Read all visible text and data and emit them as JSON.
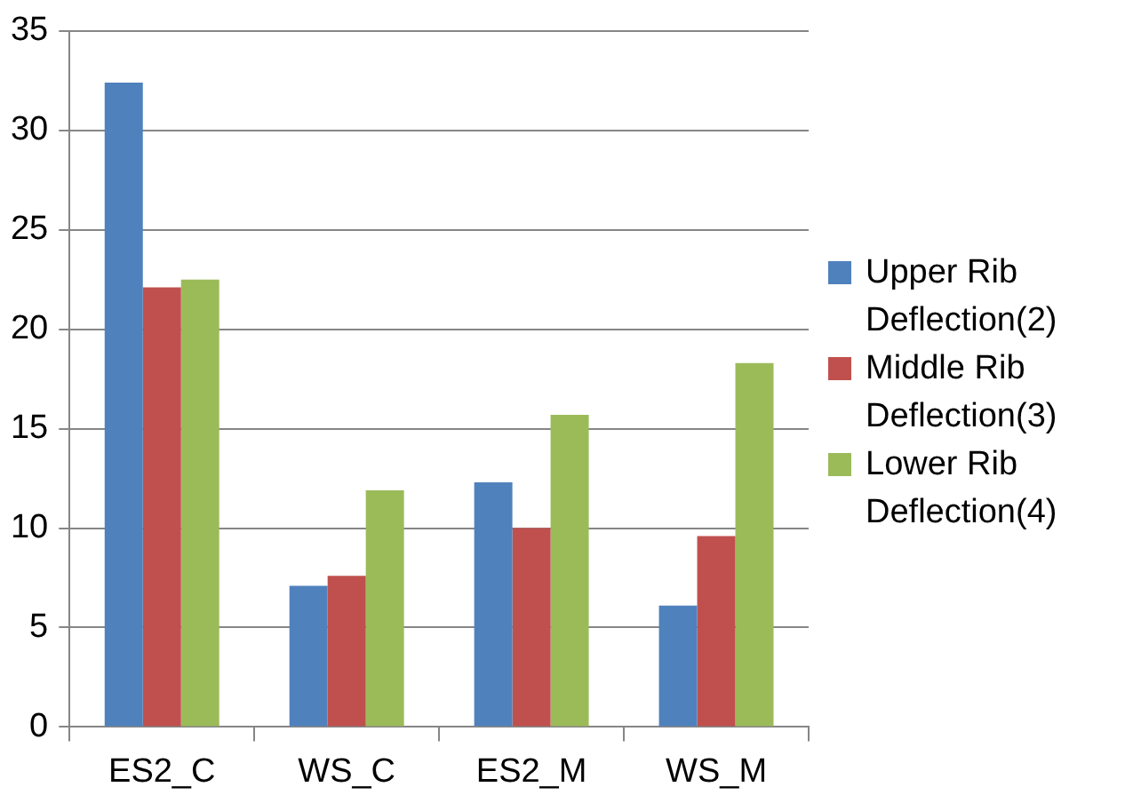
{
  "chart_data": {
    "type": "bar",
    "categories": [
      "ES2_C",
      "WS_C",
      "ES2_M",
      "WS_M"
    ],
    "series": [
      {
        "name": "Upper Rib Deflection(2)",
        "color": "#4f81bd",
        "values": [
          32.4,
          7.1,
          12.3,
          6.1
        ]
      },
      {
        "name": "Middle Rib Deflection(3)",
        "color": "#c0504d",
        "values": [
          22.1,
          7.6,
          10.0,
          9.6
        ]
      },
      {
        "name": "Lower Rib Deflection(4)",
        "color": "#9bbb59",
        "values": [
          22.5,
          11.9,
          15.7,
          18.3
        ]
      }
    ],
    "ylim": [
      0,
      35
    ],
    "yticks": [
      0,
      5,
      10,
      15,
      20,
      25,
      30,
      35
    ],
    "grid": "y",
    "legend": "right"
  }
}
